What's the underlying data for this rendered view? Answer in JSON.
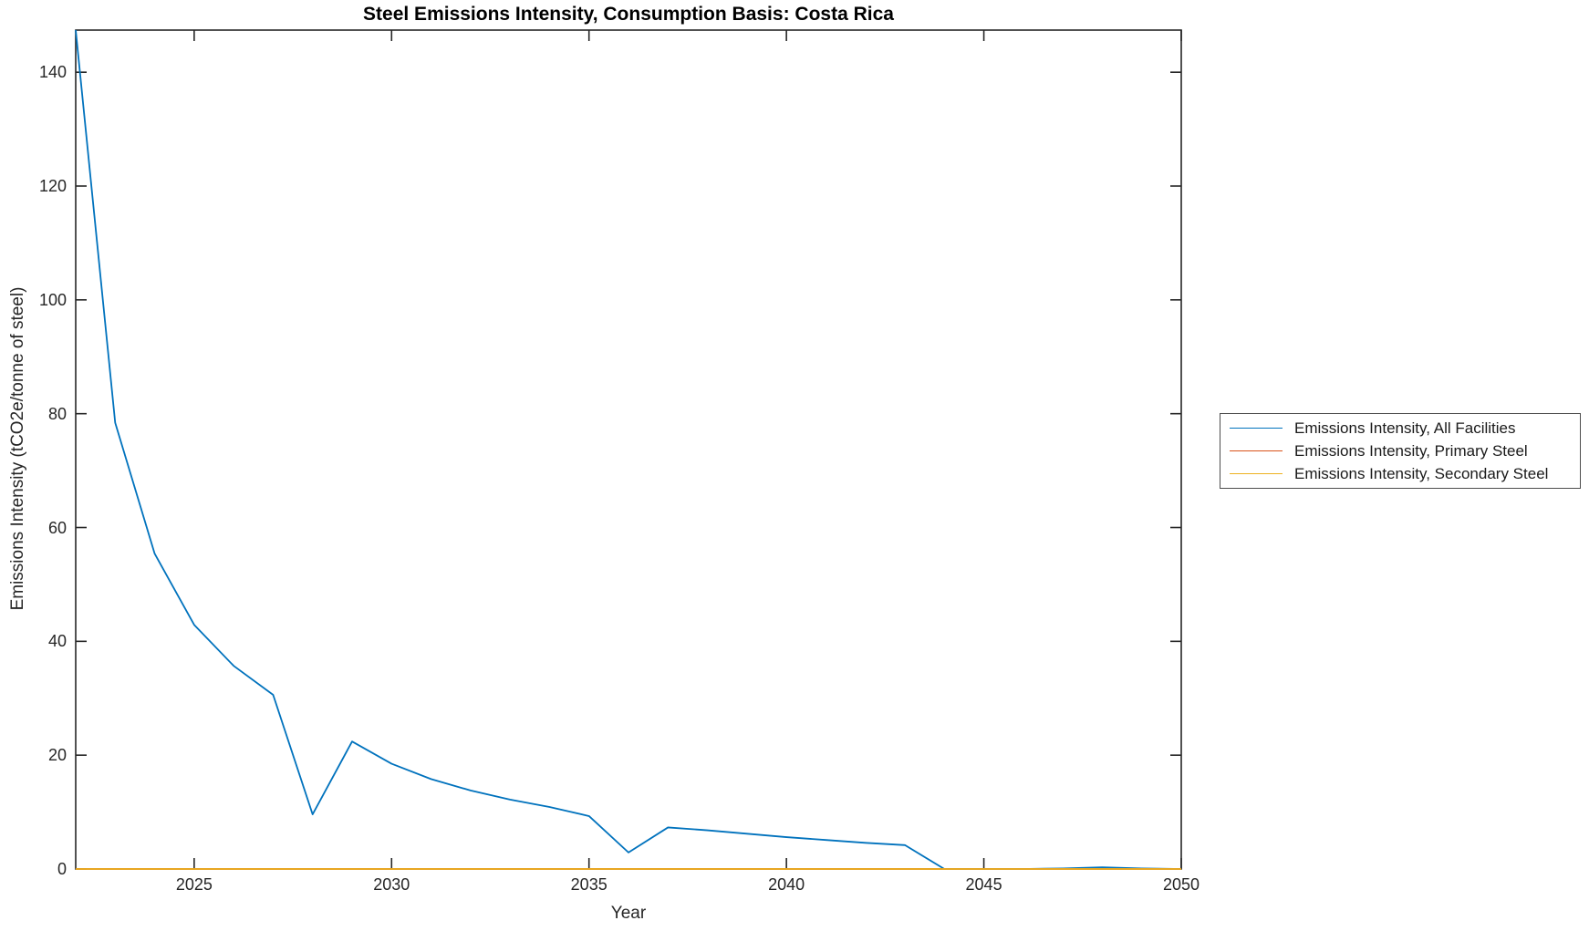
{
  "figure": {
    "title": "Steel Emissions Intensity, Consumption Basis: Costa Rica",
    "xlabel": "Year",
    "ylabel": "Emissions Intensity (tCO2e/tonne of steel)"
  },
  "axis": {
    "xtick_labels": [
      "2025",
      "2030",
      "2035",
      "2040",
      "2045",
      "2050"
    ],
    "ytick_labels": [
      "0",
      "20",
      "40",
      "60",
      "80",
      "100",
      "120",
      "140"
    ],
    "axis_color": "#262626"
  },
  "legend": {
    "items": [
      {
        "label": "Emissions Intensity, All Facilities",
        "color": "#0072BD"
      },
      {
        "label": "Emissions Intensity, Primary Steel",
        "color": "#D95319"
      },
      {
        "label": "Emissions Intensity, Secondary Steel",
        "color": "#EDB120"
      }
    ]
  },
  "chart_data": {
    "type": "line",
    "title": "Steel Emissions Intensity, Consumption Basis: Costa Rica",
    "xlabel": "Year",
    "ylabel": "Emissions Intensity (tCO2e/tonne of steel)",
    "xlim": [
      2022,
      2050
    ],
    "ylim": [
      0,
      147.4
    ],
    "xticks": [
      2025,
      2030,
      2035,
      2040,
      2045,
      2050
    ],
    "yticks": [
      0,
      20,
      40,
      60,
      80,
      100,
      120,
      140
    ],
    "grid": false,
    "legend_position": "outside-right",
    "x": [
      2022,
      2023,
      2024,
      2025,
      2026,
      2027,
      2028,
      2029,
      2030,
      2031,
      2032,
      2033,
      2034,
      2035,
      2036,
      2037,
      2038,
      2039,
      2040,
      2041,
      2042,
      2043,
      2044,
      2045,
      2046,
      2047,
      2048,
      2049,
      2050
    ],
    "series": [
      {
        "name": "Emissions Intensity, All Facilities",
        "color": "#0072BD",
        "values": [
          147.4,
          78.4,
          55.4,
          42.9,
          35.7,
          30.6,
          9.6,
          22.4,
          18.5,
          15.8,
          13.8,
          12.2,
          10.9,
          9.3,
          2.9,
          7.3,
          6.8,
          6.2,
          5.6,
          5.1,
          4.6,
          4.2,
          0,
          0,
          0,
          0.1,
          0.3,
          0.1,
          0
        ]
      },
      {
        "name": "Emissions Intensity, Primary Steel",
        "color": "#D95319",
        "values": [
          0,
          0,
          0,
          0,
          0,
          0,
          0,
          0,
          0,
          0,
          0,
          0,
          0,
          0,
          0,
          0,
          0,
          0,
          0,
          0,
          0,
          0,
          0,
          0,
          0,
          0,
          0,
          0,
          0
        ]
      },
      {
        "name": "Emissions Intensity, Secondary Steel",
        "color": "#EDB120",
        "values": [
          0,
          0,
          0,
          0,
          0,
          0,
          0,
          0,
          0,
          0,
          0,
          0,
          0,
          0,
          0,
          0,
          0,
          0,
          0,
          0,
          0,
          0,
          0,
          0,
          0,
          0,
          0,
          0,
          0
        ]
      }
    ]
  }
}
